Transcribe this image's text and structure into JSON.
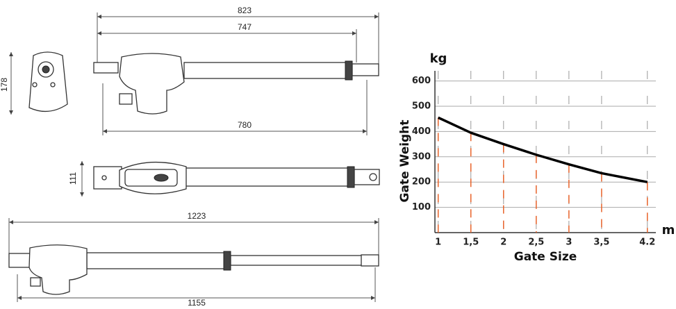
{
  "drawing": {
    "dimensions": [
      "823",
      "747",
      "780",
      "178",
      "111",
      "1223",
      "1155"
    ]
  },
  "chart_data": {
    "type": "line",
    "y_unit": "kg",
    "x_unit": "m",
    "y_label": "Gate Weight",
    "x_label": "Gate Size",
    "x": [
      1,
      1.5,
      2,
      2.5,
      3,
      3.5,
      4.2
    ],
    "values": [
      455,
      395,
      350,
      308,
      270,
      235,
      200
    ],
    "color": "#000000",
    "drop_color": "#e8632a",
    "xlim": [
      0.95,
      4.33
    ],
    "ylim": [
      0,
      640
    ],
    "xticks": [
      1,
      {
        "value": 1.5,
        "label": "1,5"
      },
      2,
      {
        "value": 2.5,
        "label": "2,5"
      },
      3,
      {
        "value": 3.5,
        "label": "3,5"
      },
      4.2
    ],
    "yticks": [
      100,
      200,
      300,
      400,
      500,
      600
    ],
    "grid": true
  }
}
